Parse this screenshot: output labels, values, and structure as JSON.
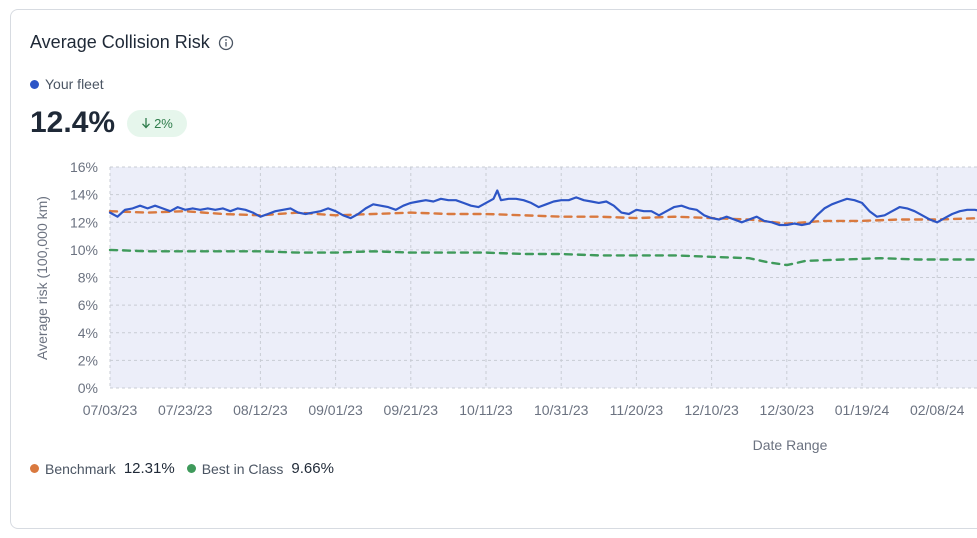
{
  "card": {
    "title": "Average Collision Risk",
    "info_icon": "info-circle-icon"
  },
  "fleet": {
    "legend_label": "Your fleet",
    "value": "12.4%",
    "change": "2%",
    "change_icon": "arrow-down-icon"
  },
  "colors": {
    "fleet": "#2d55c6",
    "benchmark": "#d9793f",
    "best_in_class": "#3f9a5b",
    "plot_fill": "#eceef9",
    "grid": "#c8ccd4"
  },
  "legend": {
    "benchmark_label": "Benchmark",
    "benchmark_value": "12.31%",
    "best_label": "Best in Class",
    "best_value": "9.66%"
  },
  "chart_data": {
    "type": "line",
    "xlabel": "Date Range",
    "ylabel": "Average risk (100,000 km)",
    "ylim": [
      0,
      16
    ],
    "y_ticks": [
      "0%",
      "2%",
      "4%",
      "6%",
      "8%",
      "10%",
      "12%",
      "14%",
      "16%"
    ],
    "x_ticks": [
      "07/03/23",
      "07/23/23",
      "08/12/23",
      "09/01/23",
      "09/21/23",
      "10/11/23",
      "10/31/23",
      "11/20/23",
      "12/10/23",
      "12/30/23",
      "01/19/24",
      "02/08/24"
    ],
    "x_day_range": [
      0,
      232
    ],
    "grid": true,
    "series": [
      {
        "name": "Your fleet",
        "style": "solid",
        "points": [
          [
            0,
            12.7
          ],
          [
            2,
            12.4
          ],
          [
            4,
            12.9
          ],
          [
            6,
            13.0
          ],
          [
            8,
            13.2
          ],
          [
            10,
            13.0
          ],
          [
            12,
            13.2
          ],
          [
            14,
            13.0
          ],
          [
            16,
            12.8
          ],
          [
            18,
            13.1
          ],
          [
            20,
            12.9
          ],
          [
            22,
            13.0
          ],
          [
            24,
            12.9
          ],
          [
            26,
            13.0
          ],
          [
            28,
            12.9
          ],
          [
            30,
            13.0
          ],
          [
            32,
            12.8
          ],
          [
            34,
            13.0
          ],
          [
            36,
            12.9
          ],
          [
            38,
            12.7
          ],
          [
            40,
            12.4
          ],
          [
            42,
            12.6
          ],
          [
            44,
            12.8
          ],
          [
            46,
            12.9
          ],
          [
            48,
            13.0
          ],
          [
            50,
            12.7
          ],
          [
            52,
            12.6
          ],
          [
            54,
            12.7
          ],
          [
            56,
            12.8
          ],
          [
            58,
            13.0
          ],
          [
            60,
            12.8
          ],
          [
            62,
            12.5
          ],
          [
            64,
            12.3
          ],
          [
            66,
            12.6
          ],
          [
            68,
            13.0
          ],
          [
            70,
            13.3
          ],
          [
            72,
            13.2
          ],
          [
            74,
            13.1
          ],
          [
            76,
            12.9
          ],
          [
            78,
            13.2
          ],
          [
            80,
            13.4
          ],
          [
            82,
            13.5
          ],
          [
            84,
            13.6
          ],
          [
            86,
            13.5
          ],
          [
            88,
            13.7
          ],
          [
            90,
            13.6
          ],
          [
            92,
            13.6
          ],
          [
            94,
            13.4
          ],
          [
            96,
            13.2
          ],
          [
            98,
            13.1
          ],
          [
            100,
            13.4
          ],
          [
            102,
            13.7
          ],
          [
            103,
            14.3
          ],
          [
            104,
            13.6
          ],
          [
            106,
            13.7
          ],
          [
            108,
            13.7
          ],
          [
            110,
            13.6
          ],
          [
            112,
            13.4
          ],
          [
            114,
            13.1
          ],
          [
            116,
            13.3
          ],
          [
            118,
            13.5
          ],
          [
            120,
            13.6
          ],
          [
            122,
            13.6
          ],
          [
            124,
            13.8
          ],
          [
            126,
            13.6
          ],
          [
            128,
            13.5
          ],
          [
            130,
            13.4
          ],
          [
            132,
            13.5
          ],
          [
            134,
            13.2
          ],
          [
            136,
            12.7
          ],
          [
            138,
            12.6
          ],
          [
            140,
            12.9
          ],
          [
            142,
            12.8
          ],
          [
            144,
            12.8
          ],
          [
            146,
            12.5
          ],
          [
            148,
            12.8
          ],
          [
            150,
            13.1
          ],
          [
            152,
            13.2
          ],
          [
            154,
            13.0
          ],
          [
            156,
            12.9
          ],
          [
            158,
            12.5
          ],
          [
            160,
            12.3
          ],
          [
            162,
            12.2
          ],
          [
            164,
            12.4
          ],
          [
            166,
            12.2
          ],
          [
            168,
            12.0
          ],
          [
            170,
            12.2
          ],
          [
            172,
            12.4
          ],
          [
            174,
            12.1
          ],
          [
            176,
            12.0
          ],
          [
            178,
            11.8
          ],
          [
            180,
            11.8
          ],
          [
            182,
            11.9
          ],
          [
            184,
            11.8
          ],
          [
            186,
            11.9
          ],
          [
            188,
            12.5
          ],
          [
            190,
            13.0
          ],
          [
            192,
            13.3
          ],
          [
            194,
            13.5
          ],
          [
            196,
            13.7
          ],
          [
            198,
            13.6
          ],
          [
            200,
            13.4
          ],
          [
            202,
            12.8
          ],
          [
            204,
            12.4
          ],
          [
            206,
            12.5
          ],
          [
            208,
            12.8
          ],
          [
            210,
            13.1
          ],
          [
            212,
            13.0
          ],
          [
            214,
            12.8
          ],
          [
            216,
            12.5
          ],
          [
            218,
            12.2
          ],
          [
            220,
            12.0
          ],
          [
            222,
            12.3
          ],
          [
            224,
            12.6
          ],
          [
            226,
            12.8
          ],
          [
            228,
            12.9
          ],
          [
            230,
            12.9
          ],
          [
            232,
            12.8
          ]
        ]
      },
      {
        "name": "Benchmark",
        "style": "dashed",
        "points": [
          [
            0,
            12.8
          ],
          [
            10,
            12.7
          ],
          [
            20,
            12.8
          ],
          [
            30,
            12.6
          ],
          [
            40,
            12.5
          ],
          [
            50,
            12.7
          ],
          [
            60,
            12.5
          ],
          [
            70,
            12.6
          ],
          [
            80,
            12.7
          ],
          [
            90,
            12.6
          ],
          [
            100,
            12.6
          ],
          [
            110,
            12.5
          ],
          [
            120,
            12.4
          ],
          [
            130,
            12.4
          ],
          [
            140,
            12.3
          ],
          [
            150,
            12.4
          ],
          [
            160,
            12.3
          ],
          [
            170,
            12.2
          ],
          [
            180,
            11.9
          ],
          [
            190,
            12.1
          ],
          [
            200,
            12.1
          ],
          [
            210,
            12.2
          ],
          [
            220,
            12.2
          ],
          [
            232,
            12.3
          ]
        ]
      },
      {
        "name": "Best in Class",
        "style": "dashed",
        "points": [
          [
            0,
            10.0
          ],
          [
            10,
            9.9
          ],
          [
            20,
            9.9
          ],
          [
            30,
            9.9
          ],
          [
            40,
            9.9
          ],
          [
            50,
            9.8
          ],
          [
            60,
            9.8
          ],
          [
            70,
            9.9
          ],
          [
            80,
            9.8
          ],
          [
            90,
            9.8
          ],
          [
            100,
            9.8
          ],
          [
            110,
            9.7
          ],
          [
            120,
            9.7
          ],
          [
            130,
            9.6
          ],
          [
            140,
            9.6
          ],
          [
            150,
            9.6
          ],
          [
            160,
            9.5
          ],
          [
            170,
            9.4
          ],
          [
            175,
            9.1
          ],
          [
            180,
            8.9
          ],
          [
            185,
            9.2
          ],
          [
            195,
            9.3
          ],
          [
            205,
            9.4
          ],
          [
            215,
            9.3
          ],
          [
            232,
            9.3
          ]
        ]
      }
    ]
  }
}
